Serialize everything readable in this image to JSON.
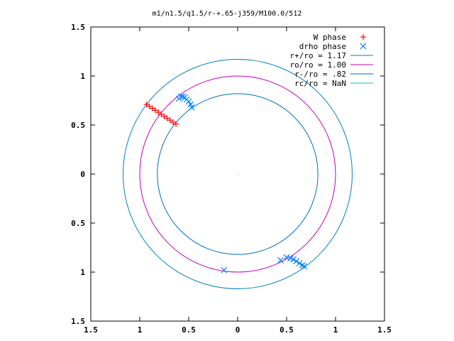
{
  "chart_data": {
    "type": "scatter",
    "title": "m1/n1.5/q1.5/r-+.65-j359/M100.0/512",
    "xlabel": "",
    "ylabel": "",
    "xlim": [
      -1.5,
      1.5
    ],
    "ylim": [
      -1.5,
      1.5
    ],
    "x_ticks": [
      {
        "value": -1.5,
        "label": "1.5"
      },
      {
        "value": -1,
        "label": "1"
      },
      {
        "value": -0.5,
        "label": "0.5"
      },
      {
        "value": 0,
        "label": "0"
      },
      {
        "value": 0.5,
        "label": "0.5"
      },
      {
        "value": 1,
        "label": "1"
      },
      {
        "value": 1.5,
        "label": "1.5"
      }
    ],
    "y_ticks": [
      {
        "value": 1.5,
        "label": "1.5"
      },
      {
        "value": 1,
        "label": "1"
      },
      {
        "value": 0.5,
        "label": "0.5"
      },
      {
        "value": 0,
        "label": "0"
      },
      {
        "value": -0.5,
        "label": "0.5"
      },
      {
        "value": -1,
        "label": "1"
      },
      {
        "value": -1.5,
        "label": "1.5"
      }
    ],
    "grid": false,
    "legend_position": "top-right",
    "series": [
      {
        "name": "W phase",
        "kind": "points",
        "marker": "plus",
        "color": "#ff0000",
        "points": [
          [
            -0.93,
            0.71
          ],
          [
            -0.9,
            0.69
          ],
          [
            -0.87,
            0.67
          ],
          [
            -0.84,
            0.65
          ],
          [
            -0.81,
            0.63
          ],
          [
            -0.78,
            0.61
          ],
          [
            -0.75,
            0.59
          ],
          [
            -0.72,
            0.57
          ],
          [
            -0.69,
            0.55
          ],
          [
            -0.66,
            0.53
          ],
          [
            -0.63,
            0.51
          ]
        ]
      },
      {
        "name": "drho phase",
        "kind": "points",
        "marker": "cross",
        "color": "#0080ff",
        "points": [
          [
            -0.6,
            0.77
          ],
          [
            -0.58,
            0.79
          ],
          [
            -0.56,
            0.79
          ],
          [
            -0.54,
            0.78
          ],
          [
            -0.52,
            0.76
          ],
          [
            -0.5,
            0.74
          ],
          [
            -0.48,
            0.71
          ],
          [
            -0.47,
            0.68
          ],
          [
            0.5,
            -0.85
          ],
          [
            0.54,
            -0.86
          ],
          [
            0.57,
            -0.87
          ],
          [
            0.6,
            -0.89
          ],
          [
            0.63,
            -0.91
          ],
          [
            0.66,
            -0.93
          ],
          [
            0.68,
            -0.94
          ],
          [
            -0.14,
            -0.98
          ],
          [
            0.44,
            -0.88
          ]
        ]
      },
      {
        "name": "r+/ro = 1.17",
        "kind": "circle",
        "radius": 1.17,
        "color": "#0080c0"
      },
      {
        "name": "ro/ro = 1.00",
        "kind": "circle",
        "radius": 1.0,
        "color": "#c000c0"
      },
      {
        "name": "r-/ro =  .82",
        "kind": "circle",
        "radius": 0.82,
        "color": "#0070c0"
      },
      {
        "name": "rc/ro = NaN",
        "kind": "circle",
        "radius": null,
        "color": "#00c0c0"
      }
    ]
  }
}
